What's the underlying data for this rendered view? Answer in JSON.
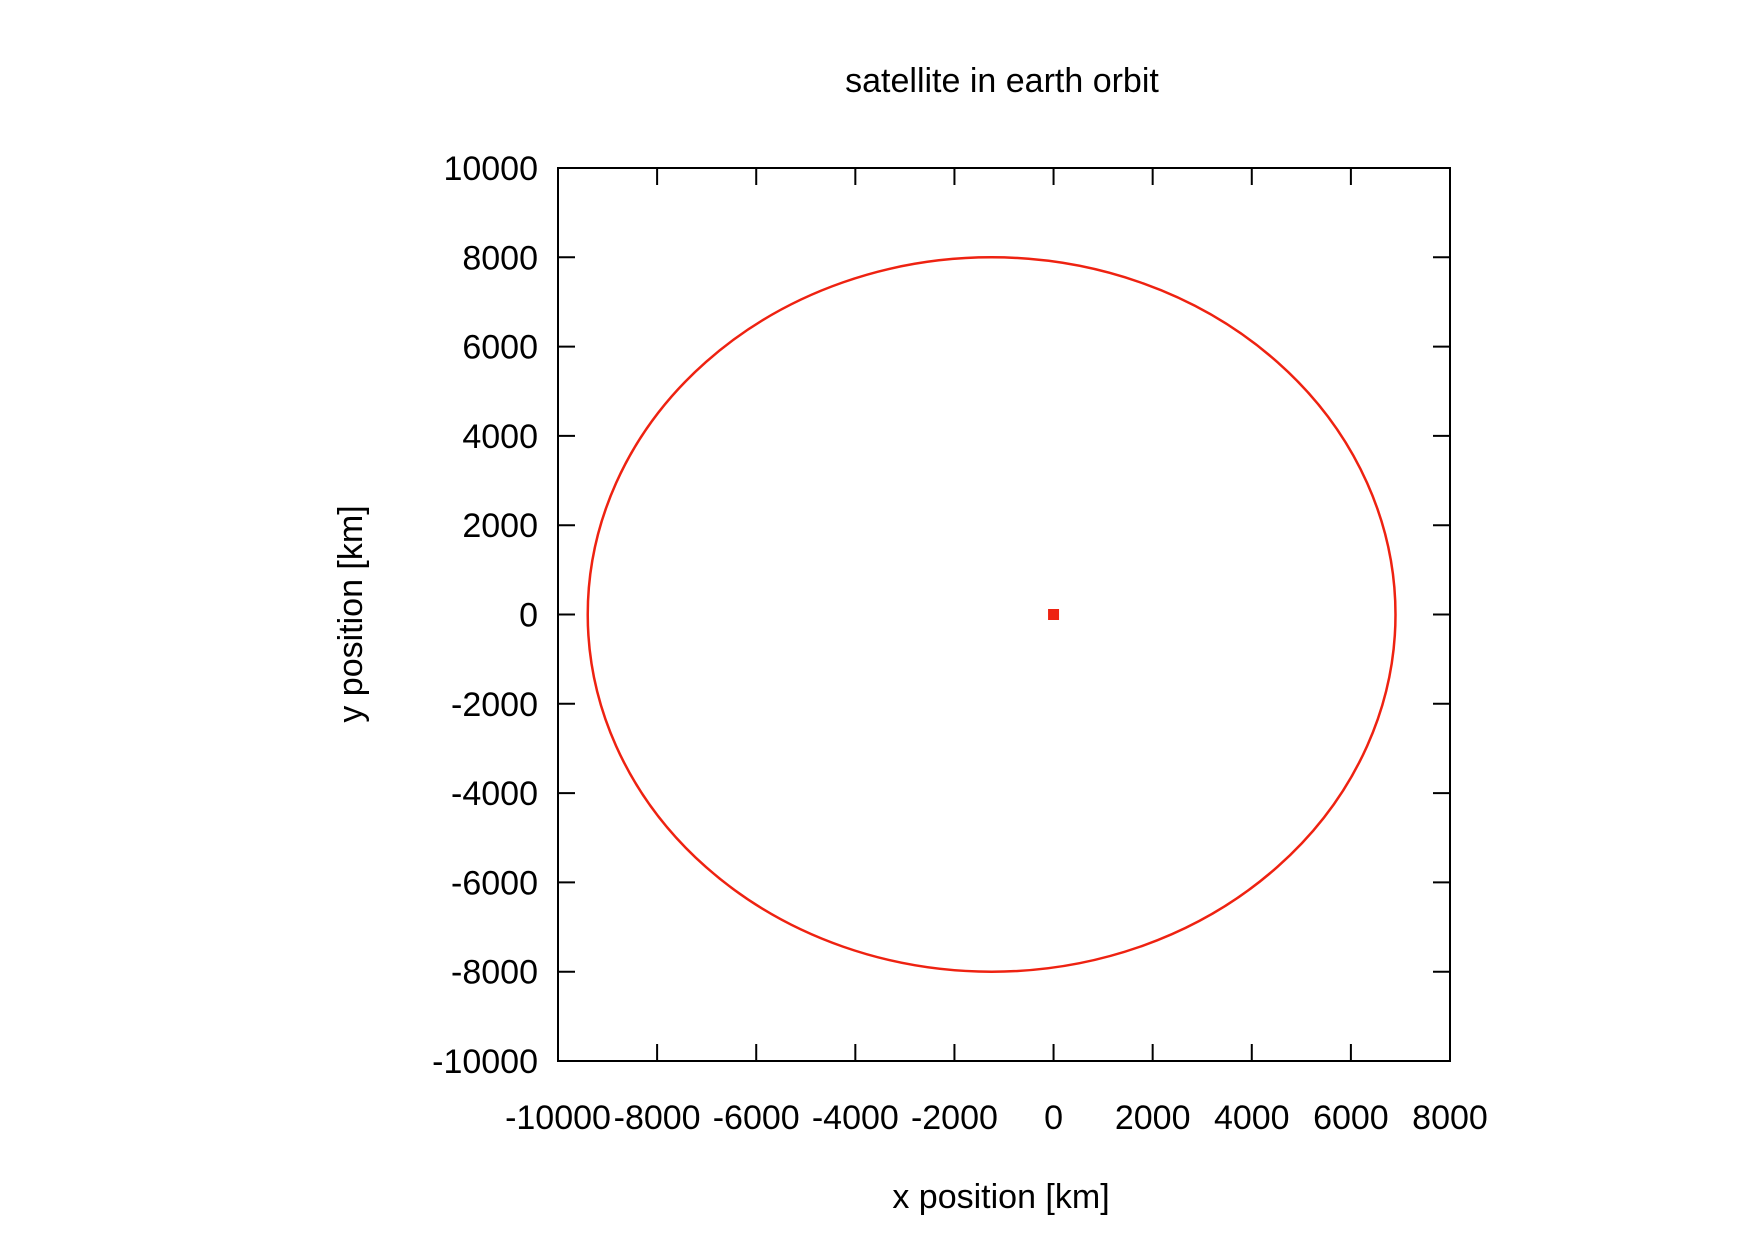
{
  "chart_data": {
    "type": "scatter",
    "title": "satellite in earth orbit",
    "xlabel": "x position [km]",
    "ylabel": "y position [km]",
    "xlim": [
      -10000,
      8000
    ],
    "ylim": [
      -10000,
      10000
    ],
    "xticks": [
      -10000,
      -8000,
      -6000,
      -4000,
      -2000,
      0,
      2000,
      4000,
      6000,
      8000
    ],
    "xtick_labels": [
      "-10000",
      "-8000",
      "-6000",
      "-4000",
      "-2000",
      "0",
      "2000",
      "4000",
      "6000",
      "8000"
    ],
    "yticks": [
      10000,
      8000,
      6000,
      4000,
      2000,
      0,
      -2000,
      -4000,
      -6000,
      -8000,
      -10000
    ],
    "ytick_labels": [
      "10000",
      "8000",
      "6000",
      "4000",
      "2000",
      "0",
      "-2000",
      "-4000",
      "-6000",
      "-8000",
      "-10000"
    ],
    "grid": false,
    "series": [
      {
        "kind": "ellipse-orbit",
        "color": "#ee2211",
        "center": [
          -1250,
          0
        ],
        "semi_major_x": 8150,
        "semi_minor_y": 8000,
        "extent": {
          "x_min": -9400,
          "x_max": 6900,
          "y_min": -8000,
          "y_max": 8000
        }
      },
      {
        "kind": "point",
        "color": "#ee2211",
        "x": 0,
        "y": 0,
        "marker": "square"
      }
    ]
  }
}
